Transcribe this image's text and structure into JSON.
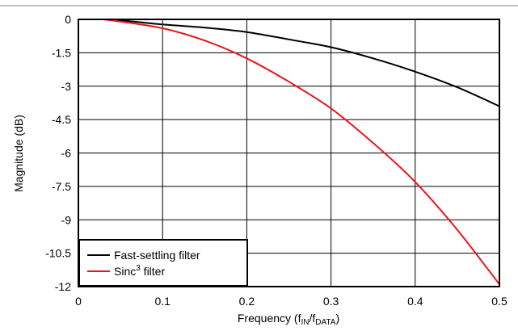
{
  "chart_data": {
    "type": "line",
    "title": "",
    "xlabel": {
      "prefix": "Frequency (f",
      "sub1": "IN",
      "mid": "/f",
      "sub2": "DATA",
      "suffix": ")"
    },
    "ylabel": "Magnitude (dB)",
    "xlim": [
      0,
      0.5
    ],
    "ylim": [
      -12,
      0
    ],
    "x_ticks": [
      0,
      0.1,
      0.2,
      0.3,
      0.4,
      0.5
    ],
    "x_tick_labels": [
      "0",
      "0.1",
      "0.2",
      "0.3",
      "0.4",
      "0.5"
    ],
    "y_ticks": [
      0,
      -1.5,
      -3,
      -4.5,
      -6,
      -7.5,
      -9,
      -10.5,
      -12
    ],
    "y_tick_labels": [
      "0",
      "-1.5",
      "-3",
      "-4.5",
      "-6",
      "-7.5",
      "-9",
      "-10.5",
      "-12"
    ],
    "grid": true,
    "legend_position": "bottom-left",
    "series": [
      {
        "name": "Fast-settling filter",
        "color": "#000000",
        "x": [
          0.03,
          0.05,
          0.1,
          0.15,
          0.2,
          0.25,
          0.3,
          0.35,
          0.4,
          0.45,
          0.5
        ],
        "y": [
          0,
          -0.04,
          -0.23,
          -0.37,
          -0.57,
          -0.9,
          -1.25,
          -1.75,
          -2.35,
          -3.05,
          -3.9
        ]
      },
      {
        "name": "Sinc",
        "name_sup": "3",
        "name_suffix": " filter",
        "color": "#e8161b",
        "x": [
          0.03,
          0.05,
          0.1,
          0.15,
          0.2,
          0.25,
          0.3,
          0.35,
          0.4,
          0.45,
          0.5
        ],
        "y": [
          0,
          -0.1,
          -0.4,
          -0.95,
          -1.75,
          -2.8,
          -4.0,
          -5.55,
          -7.3,
          -9.45,
          -11.9
        ]
      }
    ]
  }
}
